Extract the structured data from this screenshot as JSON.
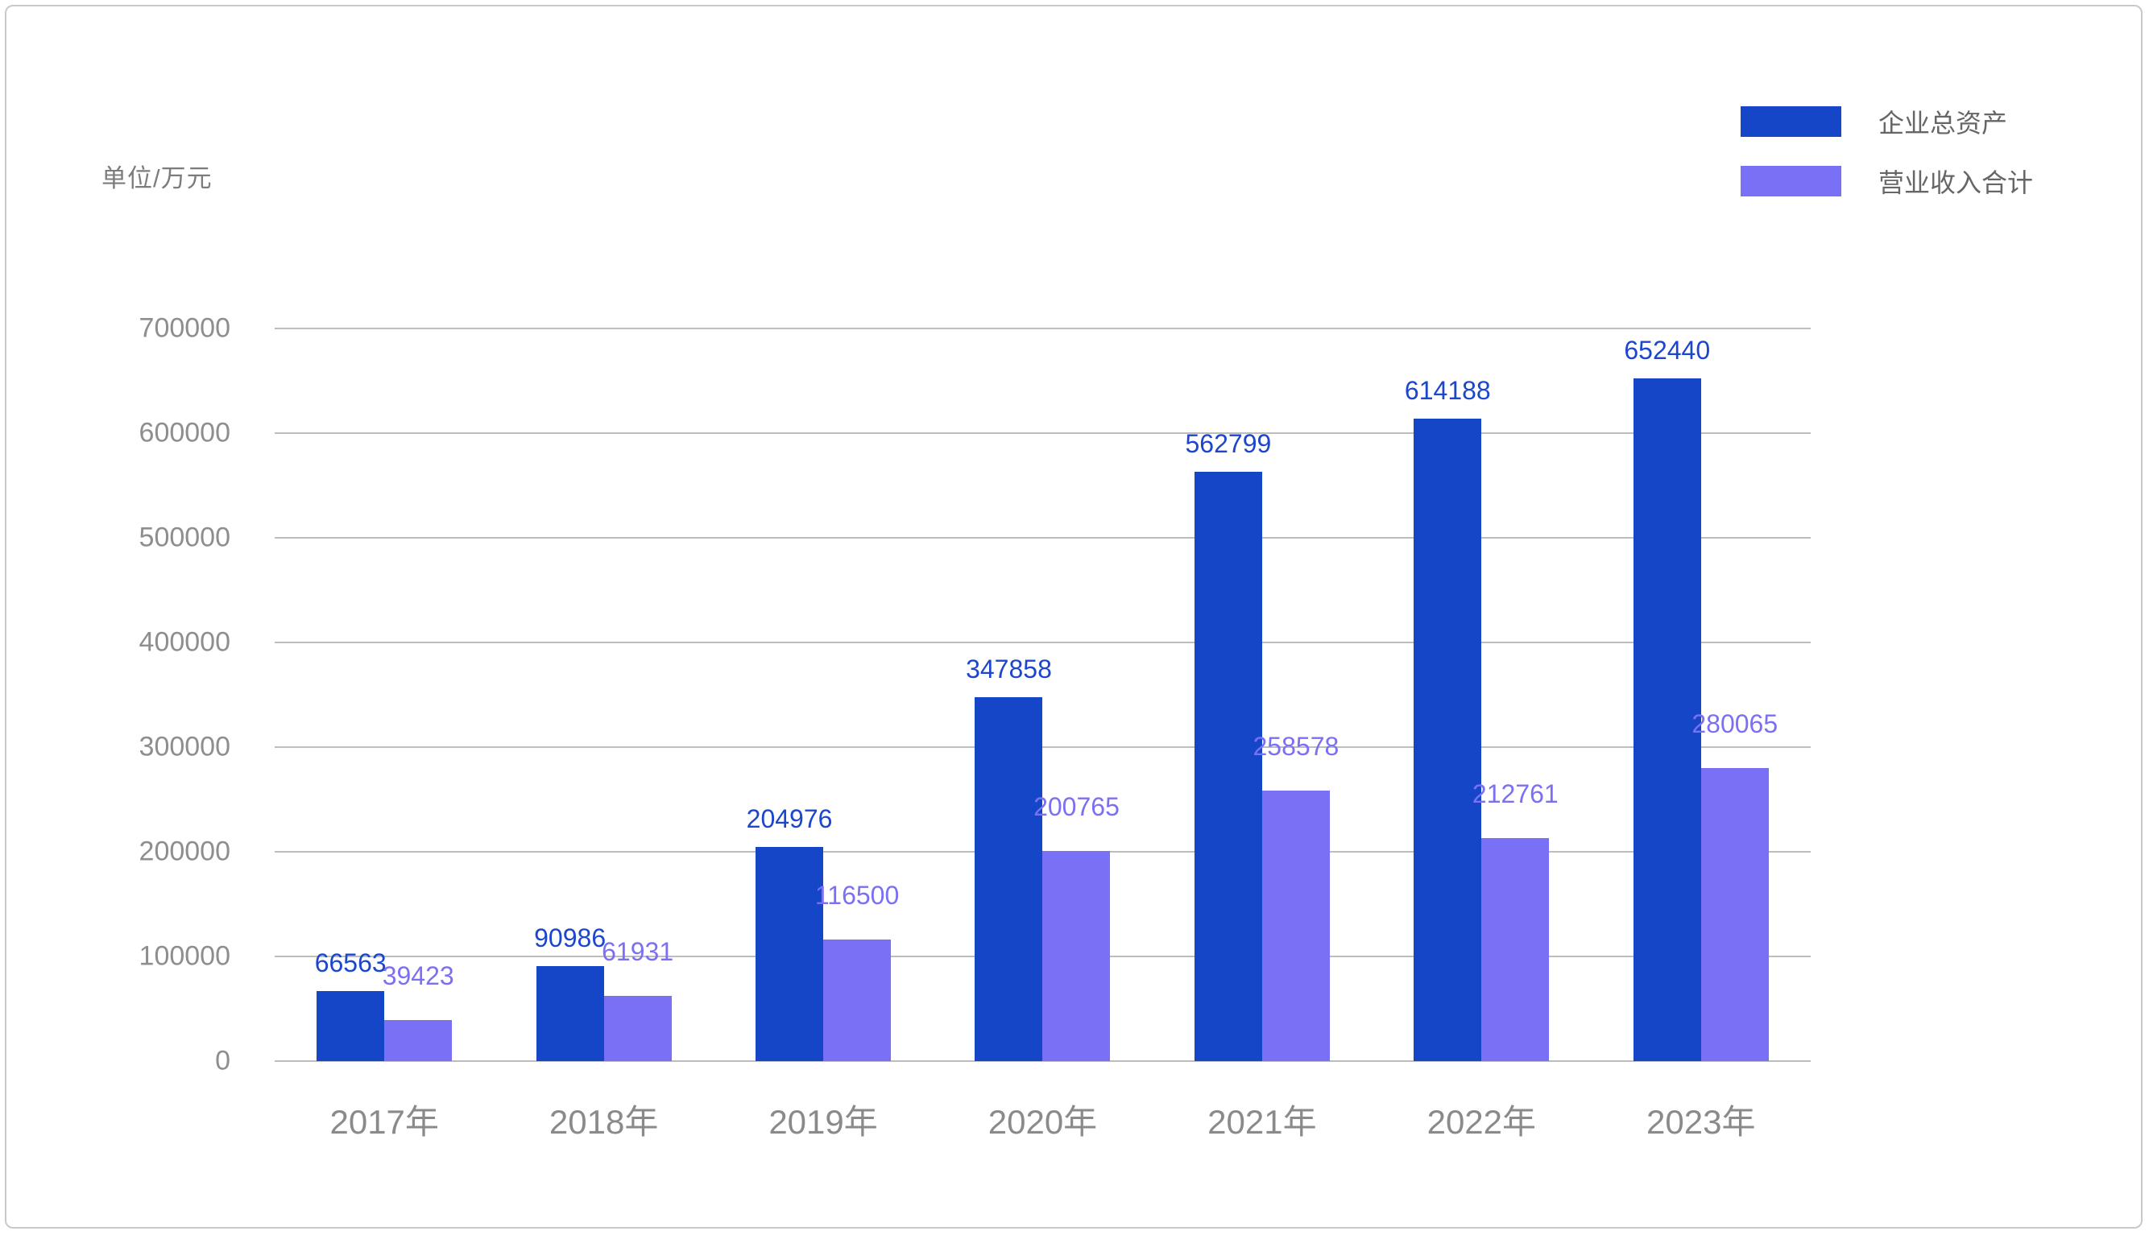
{
  "unit_label": "单位/万元",
  "chart_data": {
    "type": "bar",
    "title": "",
    "ylabel": "单位/万元",
    "categories": [
      "2017年",
      "2018年",
      "2019年",
      "2020年",
      "2021年",
      "2022年",
      "2023年"
    ],
    "series": [
      {
        "name": "企业总资产",
        "color": "#1546c8",
        "label_color": "#1c46cb",
        "values": [
          66563,
          90986,
          204976,
          347858,
          562799,
          614188,
          652440
        ]
      },
      {
        "name": "营业收入合计",
        "color": "#7a70f6",
        "label_color": "#7b70f3",
        "values": [
          39423,
          61931,
          116500,
          200765,
          258578,
          212761,
          280065
        ]
      }
    ],
    "ylim": [
      0,
      700000
    ],
    "yticks": [
      "0",
      "100000",
      "200000",
      "300000",
      "400000",
      "500000",
      "600000",
      "700000"
    ],
    "grid": true,
    "legend_position": "top-right"
  },
  "style_colors": {
    "gridline": "#bdbdbd",
    "axis_text": "#8e8e8e",
    "x_label_text": "#8a8a8a",
    "unit_text": "#7c7c7c",
    "legend_text": "#666666",
    "border": "#c9c9c9"
  }
}
